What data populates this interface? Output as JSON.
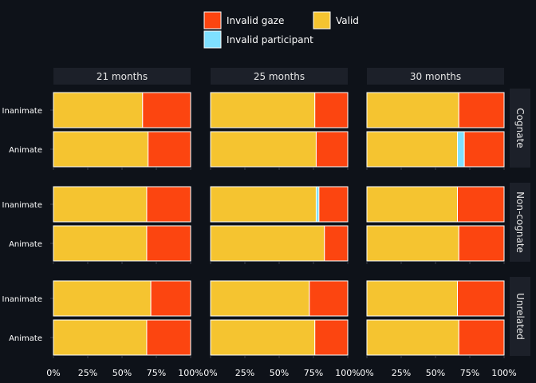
{
  "colors": {
    "background": "#0e1219",
    "strip": "#1c2029",
    "tick": "#3a3f4b",
    "Invalid gaze": "#fc4510",
    "Invalid participant": "#7fe0ff",
    "Valid": "#f5c430",
    "bar_outline": "#ffffff"
  },
  "chart_data": {
    "type": "bar",
    "orientation": "horizontal",
    "stacked": true,
    "xlim": [
      0,
      1
    ],
    "x_ticks": [
      "0%",
      "25%",
      "50%",
      "75%",
      "100%"
    ],
    "legend": {
      "position": "top",
      "entries": [
        "Invalid gaze",
        "Invalid participant",
        "Valid"
      ]
    },
    "column_facets": [
      "21 months",
      "25 months",
      "30 months"
    ],
    "row_facets": [
      "Cognate",
      "Non-cognate",
      "Unrelated"
    ],
    "categories": [
      "Inanimate",
      "Animate"
    ],
    "stack_order": [
      "Valid",
      "Invalid participant",
      "Invalid gaze"
    ],
    "panels": [
      {
        "row": "Cognate",
        "col": "21 months",
        "bars": [
          {
            "category": "Inanimate",
            "Valid": 0.65,
            "Invalid participant": 0.0,
            "Invalid gaze": 0.35
          },
          {
            "category": "Animate",
            "Valid": 0.69,
            "Invalid participant": 0.0,
            "Invalid gaze": 0.31
          }
        ]
      },
      {
        "row": "Cognate",
        "col": "25 months",
        "bars": [
          {
            "category": "Inanimate",
            "Valid": 0.76,
            "Invalid participant": 0.0,
            "Invalid gaze": 0.24
          },
          {
            "category": "Animate",
            "Valid": 0.77,
            "Invalid participant": 0.0,
            "Invalid gaze": 0.23
          }
        ]
      },
      {
        "row": "Cognate",
        "col": "30 months",
        "bars": [
          {
            "category": "Inanimate",
            "Valid": 0.67,
            "Invalid participant": 0.0,
            "Invalid gaze": 0.33
          },
          {
            "category": "Animate",
            "Valid": 0.66,
            "Invalid participant": 0.05,
            "Invalid gaze": 0.29
          }
        ]
      },
      {
        "row": "Non-cognate",
        "col": "21 months",
        "bars": [
          {
            "category": "Inanimate",
            "Valid": 0.68,
            "Invalid participant": 0.0,
            "Invalid gaze": 0.32
          },
          {
            "category": "Animate",
            "Valid": 0.68,
            "Invalid participant": 0.0,
            "Invalid gaze": 0.32
          }
        ]
      },
      {
        "row": "Non-cognate",
        "col": "25 months",
        "bars": [
          {
            "category": "Inanimate",
            "Valid": 0.77,
            "Invalid participant": 0.02,
            "Invalid gaze": 0.21
          },
          {
            "category": "Animate",
            "Valid": 0.83,
            "Invalid participant": 0.0,
            "Invalid gaze": 0.17
          }
        ]
      },
      {
        "row": "Non-cognate",
        "col": "30 months",
        "bars": [
          {
            "category": "Inanimate",
            "Valid": 0.66,
            "Invalid participant": 0.0,
            "Invalid gaze": 0.34
          },
          {
            "category": "Animate",
            "Valid": 0.67,
            "Invalid participant": 0.0,
            "Invalid gaze": 0.33
          }
        ]
      },
      {
        "row": "Unrelated",
        "col": "21 months",
        "bars": [
          {
            "category": "Inanimate",
            "Valid": 0.71,
            "Invalid participant": 0.0,
            "Invalid gaze": 0.29
          },
          {
            "category": "Animate",
            "Valid": 0.68,
            "Invalid participant": 0.0,
            "Invalid gaze": 0.32
          }
        ]
      },
      {
        "row": "Unrelated",
        "col": "25 months",
        "bars": [
          {
            "category": "Inanimate",
            "Valid": 0.72,
            "Invalid participant": 0.0,
            "Invalid gaze": 0.28
          },
          {
            "category": "Animate",
            "Valid": 0.76,
            "Invalid participant": 0.0,
            "Invalid gaze": 0.24
          }
        ]
      },
      {
        "row": "Unrelated",
        "col": "30 months",
        "bars": [
          {
            "category": "Inanimate",
            "Valid": 0.66,
            "Invalid participant": 0.0,
            "Invalid gaze": 0.34
          },
          {
            "category": "Animate",
            "Valid": 0.67,
            "Invalid participant": 0.0,
            "Invalid gaze": 0.33
          }
        ]
      }
    ]
  }
}
